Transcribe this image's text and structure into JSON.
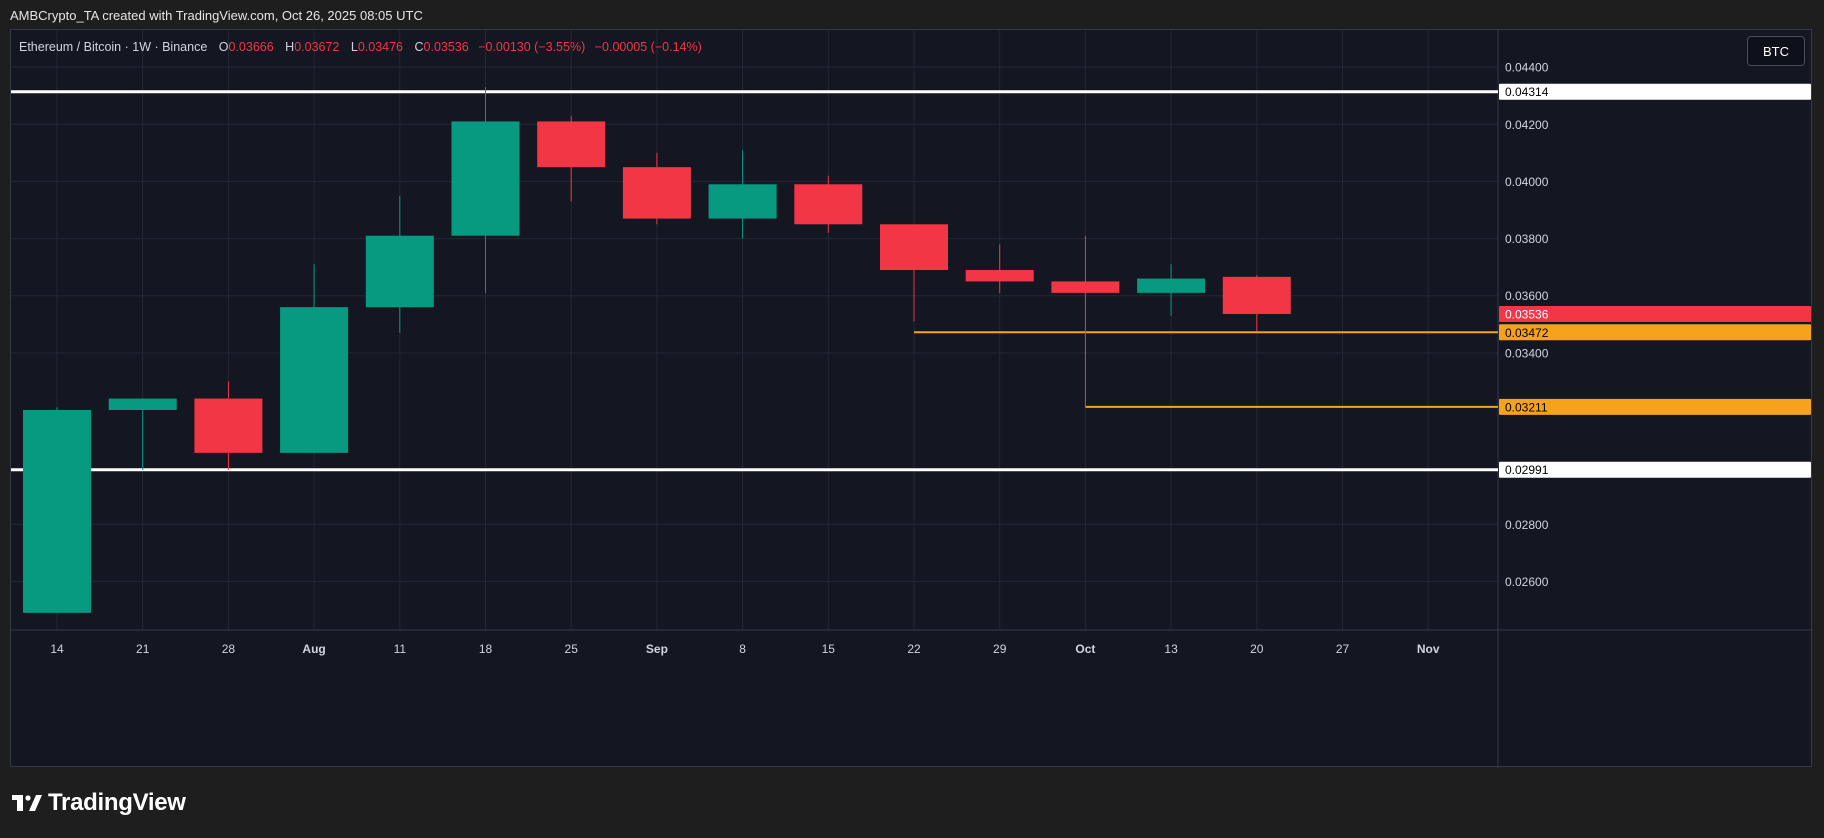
{
  "caption": "AMBCrypto_TA created with TradingView.com, Oct 26, 2025 08:05 UTC",
  "legend": {
    "symbol": "Ethereum / Bitcoin · 1W · Binance",
    "o_label": "O",
    "o_value": "0.03666",
    "h_label": "H",
    "h_value": "0.03672",
    "l_label": "L",
    "l_value": "0.03476",
    "c_label": "C",
    "c_value": "0.03536",
    "change": "−0.00130 (−3.55%)",
    "change2": "−0.00005 (−0.14%)"
  },
  "currency_button": "BTC",
  "branding": "TradingView",
  "chart_data": {
    "type": "candlestick",
    "title": "Ethereum / Bitcoin · 1W · Binance",
    "ylim": [
      0.0243,
      0.0453
    ],
    "y_ticks": [
      "0.02600",
      "0.02800",
      "0.03400",
      "0.03600",
      "0.03800",
      "0.04000",
      "0.04200",
      "0.04400"
    ],
    "x_ticks": [
      "14",
      "21",
      "28",
      "Aug",
      "11",
      "18",
      "25",
      "Sep",
      "8",
      "15",
      "22",
      "29",
      "Oct",
      "13",
      "20",
      "27",
      "Nov"
    ],
    "grid": true,
    "colors": {
      "up": "#089981",
      "down": "#f23645",
      "support": "#ffffff",
      "level": "#f7a21b"
    },
    "candles": [
      {
        "x": "14",
        "open": 0.0249,
        "high": 0.0321,
        "low": 0.0249,
        "close": 0.032
      },
      {
        "x": "21",
        "open": 0.032,
        "high": 0.0324,
        "low": 0.0299,
        "close": 0.0324
      },
      {
        "x": "28",
        "open": 0.0324,
        "high": 0.033,
        "low": 0.0299,
        "close": 0.0305
      },
      {
        "x": "Aug",
        "open": 0.0305,
        "high": 0.0371,
        "low": 0.0305,
        "close": 0.0356
      },
      {
        "x": "11",
        "open": 0.0356,
        "high": 0.0395,
        "low": 0.0347,
        "close": 0.0381
      },
      {
        "x": "18",
        "open": 0.0381,
        "high": 0.0433,
        "low": 0.0361,
        "close": 0.0421
      },
      {
        "x": "25",
        "open": 0.0421,
        "high": 0.0423,
        "low": 0.0393,
        "close": 0.0405
      },
      {
        "x": "Sep",
        "open": 0.0405,
        "high": 0.041,
        "low": 0.0385,
        "close": 0.0387
      },
      {
        "x": "8",
        "open": 0.0387,
        "high": 0.0411,
        "low": 0.038,
        "close": 0.0399
      },
      {
        "x": "15",
        "open": 0.0399,
        "high": 0.0402,
        "low": 0.0382,
        "close": 0.0385
      },
      {
        "x": "22",
        "open": 0.0385,
        "high": 0.0385,
        "low": 0.0351,
        "close": 0.0369
      },
      {
        "x": "29",
        "open": 0.0369,
        "high": 0.0378,
        "low": 0.0361,
        "close": 0.0365
      },
      {
        "x": "Oct",
        "open": 0.0365,
        "high": 0.0381,
        "low": 0.0321,
        "close": 0.0361
      },
      {
        "x": "13",
        "open": 0.0361,
        "high": 0.0371,
        "low": 0.0353,
        "close": 0.0366
      },
      {
        "x": "20",
        "open": 0.03666,
        "high": 0.03672,
        "low": 0.03476,
        "close": 0.03536
      }
    ],
    "horizontal_lines": [
      {
        "value": 0.04314,
        "label": "0.04314",
        "color": "#ffffff",
        "from_x": "start"
      },
      {
        "value": 0.02991,
        "label": "0.02991",
        "color": "#ffffff",
        "from_x": "start"
      },
      {
        "value": 0.03472,
        "label": "0.03472",
        "color": "#f7a21b",
        "from_x": "22"
      },
      {
        "value": 0.03211,
        "label": "0.03211",
        "color": "#f7a21b",
        "from_x": "Oct"
      }
    ],
    "last_price": {
      "value": 0.03536,
      "label": "0.03536",
      "color": "#f23645"
    }
  }
}
